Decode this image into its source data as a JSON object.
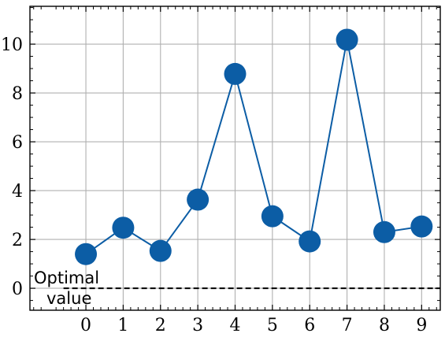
{
  "chart_data": {
    "type": "line",
    "title": "",
    "xlabel": "",
    "ylabel": "",
    "x": [
      0,
      1,
      2,
      3,
      4,
      5,
      6,
      7,
      8,
      9
    ],
    "series": [
      {
        "values": [
          1.4,
          2.48,
          1.53,
          3.63,
          8.78,
          2.95,
          1.92,
          10.18,
          2.3,
          2.53
        ],
        "color": "#0c5da5"
      }
    ],
    "xlim": [
      -1.5,
      9.5
    ],
    "ylim": [
      -0.9,
      11.55
    ],
    "x_ticks": [
      "0",
      "1",
      "2",
      "3",
      "4",
      "5",
      "6",
      "7",
      "8",
      "9"
    ],
    "y_ticks": [
      "0",
      "2",
      "4",
      "6",
      "8",
      "10"
    ],
    "grid": true,
    "reference_line": {
      "y": 0,
      "style": "dashed",
      "color": "#000000"
    },
    "annotation": {
      "line1": "Optimal",
      "line2": "value"
    }
  }
}
